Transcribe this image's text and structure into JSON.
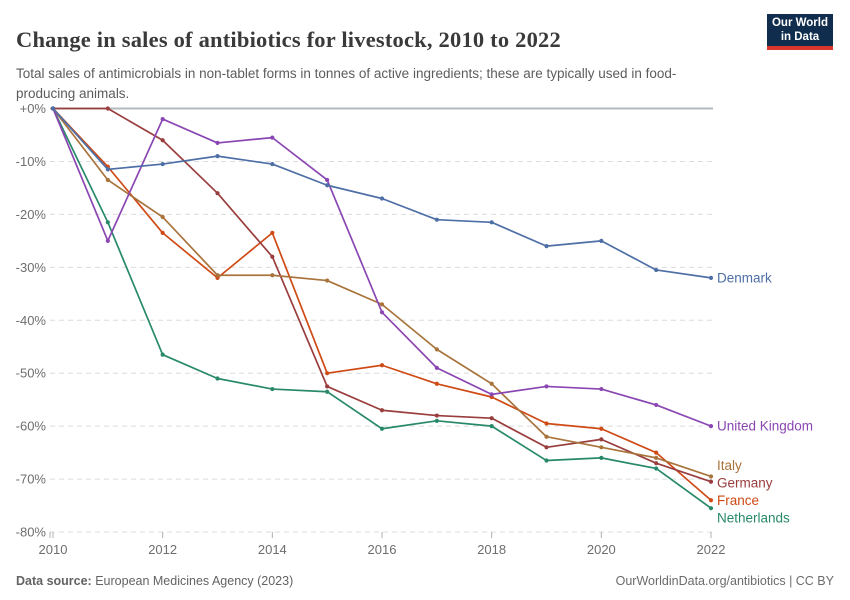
{
  "header": {
    "title": "Change in sales of antibiotics for livestock, 2010 to 2022",
    "subtitle": "Total sales of antimicrobials in non-tablet forms in tonnes of active ingredients; these are typically used in food-producing animals.",
    "logo": {
      "line1": "Our World",
      "line2": "in Data"
    }
  },
  "chart_data": {
    "type": "line",
    "title": "Change in sales of antibiotics for livestock, 2010 to 2022",
    "x": [
      2010,
      2011,
      2012,
      2013,
      2014,
      2015,
      2016,
      2017,
      2018,
      2019,
      2020,
      2021,
      2022
    ],
    "x_ticks": [
      2010,
      2012,
      2014,
      2016,
      2018,
      2020,
      2022
    ],
    "ylim": [
      -80,
      0
    ],
    "y_ticks": [
      0,
      -10,
      -20,
      -30,
      -40,
      -50,
      -60,
      -70,
      -80
    ],
    "y_tick_labels": [
      "+0%",
      "-10%",
      "-20%",
      "-30%",
      "-40%",
      "-50%",
      "-60%",
      "-70%",
      "-80%"
    ],
    "grid": true,
    "legend_position": "end-labels-right",
    "unit": "% change since 2010",
    "series": [
      {
        "name": "Denmark",
        "color": "#4e6fa6",
        "values": [
          0,
          -11.5,
          -10.5,
          -9,
          -10.5,
          -14.5,
          -17,
          -21,
          -21.5,
          -26,
          -25,
          -30.5,
          -32
        ]
      },
      {
        "name": "United Kingdom",
        "color": "#8a46b2",
        "values": [
          0,
          -25,
          -2,
          -6.5,
          -5.5,
          -13.5,
          -38.5,
          -49,
          -54,
          -52.5,
          -53,
          -56,
          -60
        ]
      },
      {
        "name": "Italy",
        "color": "#a9733c",
        "values": [
          0,
          -13.5,
          -20.5,
          -31.5,
          -31.5,
          -32.5,
          -37,
          -45.5,
          -52,
          -62,
          -64,
          -66,
          -69.5
        ]
      },
      {
        "name": "Germany",
        "color": "#993d3d",
        "values": [
          0,
          0,
          -6,
          -16,
          -28,
          -52.5,
          -57,
          -58,
          -58.5,
          -64,
          -62.5,
          -67,
          -70.5
        ]
      },
      {
        "name": "France",
        "color": "#cf4a15",
        "values": [
          0,
          -11,
          -23.5,
          -32,
          -23.5,
          -50,
          -48.5,
          -52,
          -54.5,
          -59.5,
          -60.5,
          -65,
          -74
        ]
      },
      {
        "name": "Netherlands",
        "color": "#27896a",
        "values": [
          0,
          -21.5,
          -46.5,
          -51,
          -53,
          -53.5,
          -60.5,
          -59,
          -60,
          -66.5,
          -66,
          -68,
          -75.5
        ]
      }
    ]
  },
  "footer": {
    "source_label": "Data source:",
    "source_text": " European Medicines Agency (2023)",
    "link_text": "OurWorldinData.org/antibiotics | CC BY"
  }
}
